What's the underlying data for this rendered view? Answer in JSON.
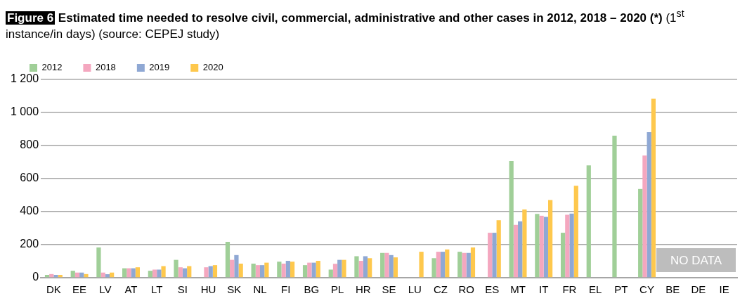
{
  "chart_data": {
    "type": "bar",
    "title": "Figure 6 Estimated time needed to resolve civil, commercial, administrative and other cases in 2012, 2018 – 2020 (*)",
    "subtitle": "(1$^{st}$ instance/in days) (source: CEPEJ study)",
    "categories": [
      "DK",
      "EE",
      "LV",
      "AT",
      "LT",
      "SI",
      "HU",
      "SK",
      "NL",
      "FI",
      "BG",
      "PL",
      "HR",
      "SE",
      "LU",
      "CZ",
      "RO",
      "ES",
      "MT",
      "IT",
      "FR",
      "EL",
      "PT",
      "CY",
      "BE",
      "DE",
      "IE"
    ],
    "series": [
      {
        "name": "2012",
        "color": "#a0cf98",
        "values": [
          17,
          42,
          183,
          57,
          42,
          108,
          null,
          217,
          85,
          97,
          76,
          49,
          130,
          150,
          null,
          118,
          157,
          null,
          706,
          386,
          272,
          680,
          860,
          537,
          null,
          null,
          null
        ]
      },
      {
        "name": "2018",
        "color": "#f4a7bf",
        "values": [
          22,
          31,
          31,
          57,
          49,
          63,
          63,
          108,
          76,
          85,
          91,
          84,
          102,
          150,
          null,
          157,
          150,
          272,
          320,
          375,
          381,
          null,
          null,
          739,
          null,
          null,
          null
        ]
      },
      {
        "name": "2019",
        "color": "#8fa8d4",
        "values": [
          17,
          31,
          21,
          57,
          49,
          57,
          70,
          137,
          76,
          102,
          91,
          108,
          130,
          137,
          null,
          157,
          150,
          272,
          341,
          368,
          388,
          null,
          null,
          881,
          null,
          null,
          null
        ]
      },
      {
        "name": "2020",
        "color": "#fec84d",
        "values": [
          17,
          22,
          31,
          63,
          70,
          70,
          76,
          85,
          91,
          97,
          102,
          108,
          118,
          123,
          157,
          171,
          183,
          348,
          413,
          470,
          556,
          null,
          null,
          1083,
          null,
          null,
          null
        ]
      }
    ],
    "ylim": [
      0,
      1200
    ],
    "yticks": [
      0,
      200,
      400,
      600,
      800,
      {
        "value": 1000,
        "label": "1 000"
      },
      {
        "value": 1200,
        "label": "1 200"
      }
    ],
    "grid": "y",
    "legend": "top left",
    "annotations": [
      "NO DATA"
    ]
  }
}
